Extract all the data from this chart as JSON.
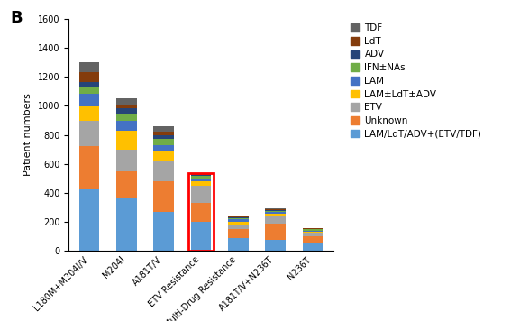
{
  "categories": [
    "L180M+M204I/V",
    "M204I",
    "A181T/V",
    "ETV Resistance",
    "Multi-Drug Resistance",
    "A181T/V+N236T",
    "N236T"
  ],
  "series": {
    "LAM/LdT/ADV+(ETV/TDF)": [
      425,
      360,
      265,
      200,
      85,
      75,
      50
    ],
    "Unknown": [
      300,
      185,
      215,
      130,
      60,
      110,
      45
    ],
    "ETV": [
      170,
      155,
      135,
      120,
      35,
      55,
      25
    ],
    "LAM±LdT±ADV": [
      100,
      130,
      70,
      30,
      20,
      15,
      10
    ],
    "LAM": [
      90,
      65,
      45,
      20,
      15,
      10,
      8
    ],
    "IFN±NAs": [
      40,
      50,
      40,
      15,
      10,
      10,
      7
    ],
    "ADV": [
      40,
      40,
      30,
      10,
      5,
      5,
      5
    ],
    "LdT": [
      70,
      20,
      20,
      5,
      5,
      5,
      3
    ],
    "TDF": [
      70,
      50,
      40,
      0,
      5,
      5,
      2
    ]
  },
  "colors": {
    "LAM/LdT/ADV+(ETV/TDF)": "#5B9BD5",
    "Unknown": "#ED7D31",
    "ETV": "#A5A5A5",
    "LAM±LdT±ADV": "#FFC000",
    "LAM": "#4472C4",
    "IFN±NAs": "#70AD47",
    "ADV": "#264478",
    "LdT": "#843C0C",
    "TDF": "#636363"
  },
  "ylabel": "Patient numbers",
  "ylim": [
    0,
    1600
  ],
  "yticks": [
    0,
    200,
    400,
    600,
    800,
    1000,
    1200,
    1400,
    1600
  ],
  "panel_label": "B",
  "highlighted_bar": "ETV Resistance",
  "highlight_color": "red",
  "legend_order": [
    "TDF",
    "LdT",
    "ADV",
    "IFN±NAs",
    "LAM",
    "LAM±LdT±ADV",
    "ETV",
    "Unknown",
    "LAM/LdT/ADV+(ETV/TDF)"
  ],
  "figsize": [
    5.87,
    3.56
  ],
  "dpi": 100
}
